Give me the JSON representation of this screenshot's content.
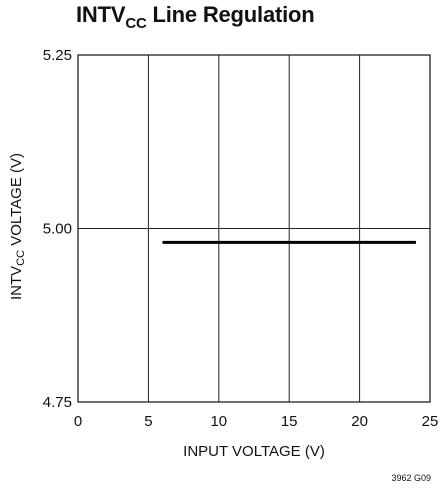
{
  "chart_data": {
    "type": "line",
    "title_main": "INTV",
    "title_sub": "CC",
    "title_rest": " Line Regulation",
    "xlabel": "INPUT VOLTAGE (V)",
    "ylabel_main": "INTV",
    "ylabel_sub": "CC",
    "ylabel_rest": " VOLTAGE (V)",
    "xlim": [
      0,
      25
    ],
    "ylim": [
      4.75,
      5.25
    ],
    "x_ticks": [
      0,
      5,
      10,
      15,
      20,
      25
    ],
    "x_tick_labels": [
      "0",
      "5",
      "10",
      "15",
      "20",
      "25"
    ],
    "y_ticks": [
      4.75,
      5.0,
      5.25
    ],
    "y_tick_labels": [
      "4.75",
      "5.00",
      "5.25"
    ],
    "grid": true,
    "series": [
      {
        "x": [
          6,
          24
        ],
        "y": [
          4.98,
          4.98
        ]
      }
    ],
    "figure_id": "3962 G09"
  }
}
